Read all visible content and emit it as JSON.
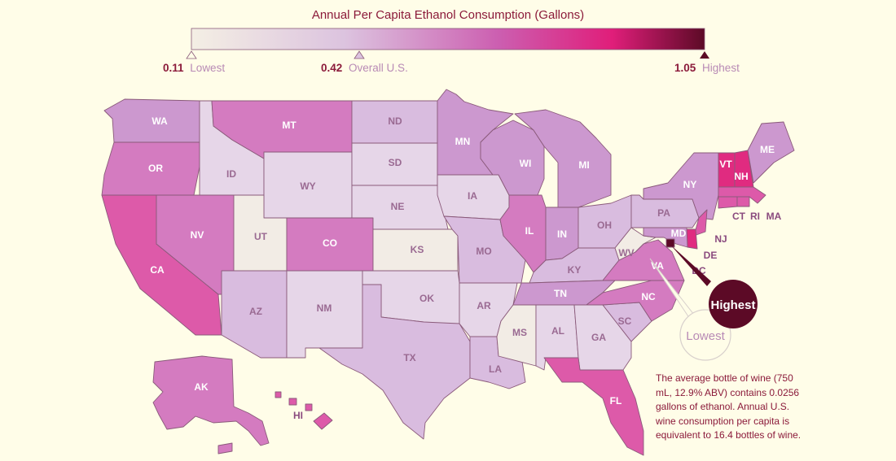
{
  "title": "Annual Per Capita Ethanol Consumption (Gallons)",
  "legend": {
    "low_value": "0.11",
    "low_label": "Lowest",
    "mid_value": "0.42",
    "mid_label": "Overall U.S.",
    "high_value": "1.05",
    "high_label": "Highest",
    "gradient_colors": [
      "#f4efe4",
      "#dcc3df",
      "#cc5eb0",
      "#e01e7a",
      "#5c0a26"
    ]
  },
  "callouts": {
    "highest": "Highest",
    "lowest": "Lowest"
  },
  "colors": {
    "c0": "#f2ece5",
    "c1": "#e6d6e8",
    "c2": "#d9bcdf",
    "c3": "#cc98cf",
    "c4": "#d47bc0",
    "c5": "#dd5aa9",
    "c6": "#e02b80",
    "c7": "#5c0a26"
  },
  "states": [
    {
      "abbr": "WA",
      "level": 3
    },
    {
      "abbr": "OR",
      "level": 4
    },
    {
      "abbr": "CA",
      "level": 5
    },
    {
      "abbr": "NV",
      "level": 4
    },
    {
      "abbr": "ID",
      "level": 1
    },
    {
      "abbr": "MT",
      "level": 4
    },
    {
      "abbr": "WY",
      "level": 1
    },
    {
      "abbr": "UT",
      "level": 0
    },
    {
      "abbr": "CO",
      "level": 4
    },
    {
      "abbr": "AZ",
      "level": 2
    },
    {
      "abbr": "NM",
      "level": 1
    },
    {
      "abbr": "ND",
      "level": 2
    },
    {
      "abbr": "SD",
      "level": 1
    },
    {
      "abbr": "NE",
      "level": 1
    },
    {
      "abbr": "KS",
      "level": 0
    },
    {
      "abbr": "OK",
      "level": 1
    },
    {
      "abbr": "TX",
      "level": 2
    },
    {
      "abbr": "MN",
      "level": 3
    },
    {
      "abbr": "IA",
      "level": 1
    },
    {
      "abbr": "MO",
      "level": 2
    },
    {
      "abbr": "AR",
      "level": 1
    },
    {
      "abbr": "LA",
      "level": 2
    },
    {
      "abbr": "WI",
      "level": 3
    },
    {
      "abbr": "IL",
      "level": 4
    },
    {
      "abbr": "MI",
      "level": 3
    },
    {
      "abbr": "IN",
      "level": 3
    },
    {
      "abbr": "OH",
      "level": 2
    },
    {
      "abbr": "KY",
      "level": 2
    },
    {
      "abbr": "TN",
      "level": 3
    },
    {
      "abbr": "MS",
      "level": 0
    },
    {
      "abbr": "AL",
      "level": 1
    },
    {
      "abbr": "GA",
      "level": 1
    },
    {
      "abbr": "FL",
      "level": 5
    },
    {
      "abbr": "SC",
      "level": 2
    },
    {
      "abbr": "NC",
      "level": 4
    },
    {
      "abbr": "VA",
      "level": 4
    },
    {
      "abbr": "WV",
      "level": 0
    },
    {
      "abbr": "PA",
      "level": 2
    },
    {
      "abbr": "NY",
      "level": 3
    },
    {
      "abbr": "VT",
      "level": 6
    },
    {
      "abbr": "NH",
      "level": 6
    },
    {
      "abbr": "ME",
      "level": 3
    },
    {
      "abbr": "MA",
      "level": 5
    },
    {
      "abbr": "RI",
      "level": 5
    },
    {
      "abbr": "CT",
      "level": 5
    },
    {
      "abbr": "NJ",
      "level": 5
    },
    {
      "abbr": "DE",
      "level": 6
    },
    {
      "abbr": "MD",
      "level": 3
    },
    {
      "abbr": "DC",
      "level": 7
    },
    {
      "abbr": "AK",
      "level": 4
    },
    {
      "abbr": "HI",
      "level": 5
    }
  ],
  "note": "The average bottle of wine (750 mL, 12.9% ABV) contains 0.0256 gallons of ethanol. Annual U.S. wine consumption per capita is equivalent to 16.4 bottles of wine."
}
